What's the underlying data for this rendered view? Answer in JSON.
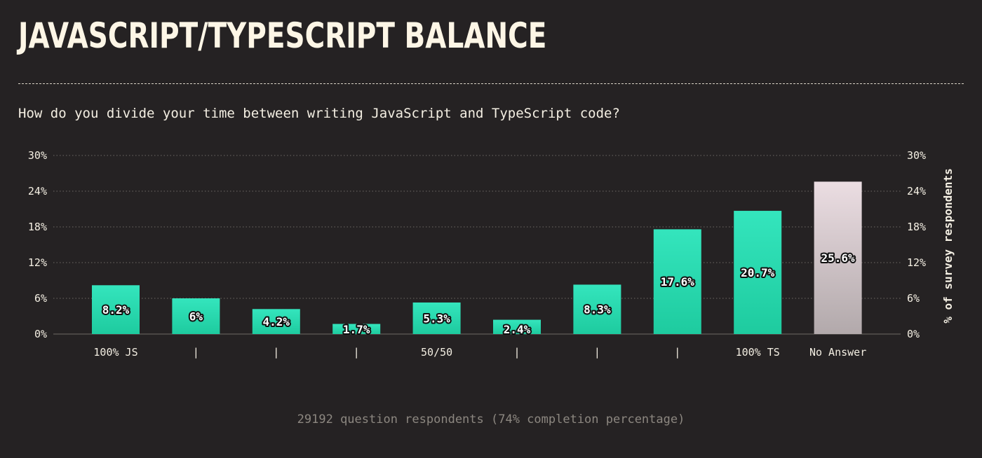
{
  "header": {
    "title": "JAVASCRIPT/TYPESCRIPT BALANCE",
    "question": "How do you divide your time between writing JavaScript and TypeScript code?"
  },
  "footer": {
    "respondents": "29192 question respondents (74% completion percentage)"
  },
  "chart_data": {
    "type": "bar",
    "categories": [
      "100% JS",
      "|",
      "|",
      "|",
      "50/50",
      "|",
      "|",
      "|",
      "100% TS",
      "No Answer"
    ],
    "values": [
      8.2,
      6,
      4.2,
      1.7,
      5.3,
      2.4,
      8.3,
      17.6,
      20.7,
      25.6
    ],
    "data_labels": [
      "8.2%",
      "6%",
      "4.2%",
      "1.7%",
      "5.3%",
      "2.4%",
      "8.3%",
      "17.6%",
      "20.7%",
      "25.6%"
    ],
    "ylabel": "% of survey respondents",
    "ylim": [
      0,
      30
    ],
    "yticks": [
      0,
      6,
      12,
      18,
      24,
      30
    ],
    "ytick_labels": [
      "0%",
      "6%",
      "12%",
      "18%",
      "24%",
      "30%"
    ],
    "grid": true,
    "colors": {
      "bar_top": "#34e5bd",
      "bar_bottom": "#1ecb9f",
      "no_answer_top": "#ebdde2",
      "no_answer_bottom": "#b2a9ab",
      "grid": "#6e6a66"
    }
  }
}
